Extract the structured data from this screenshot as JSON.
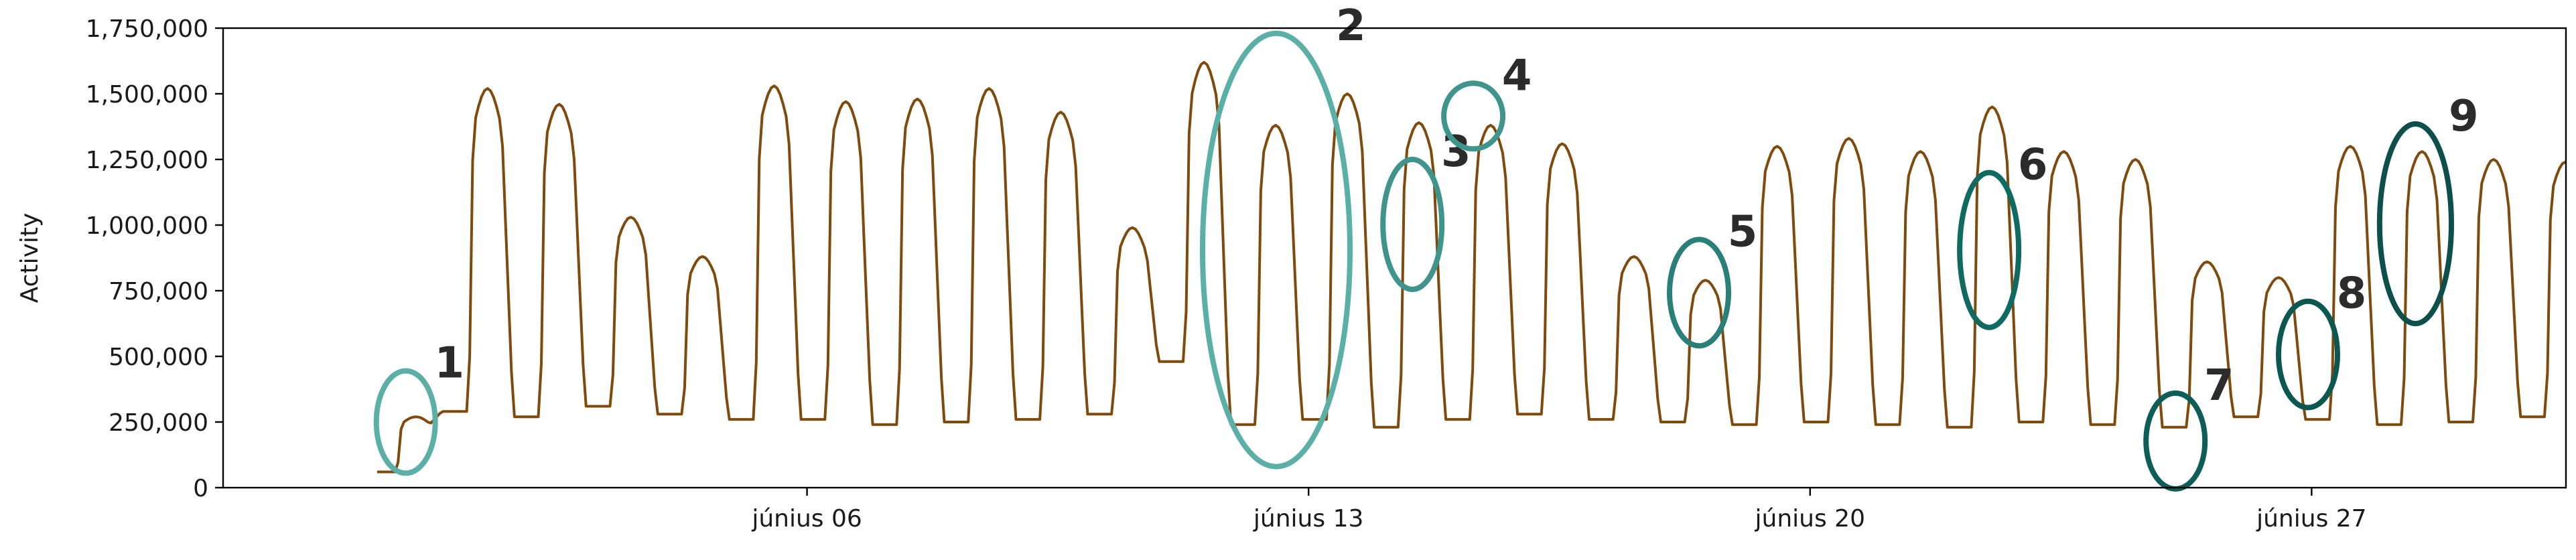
{
  "chart_data": {
    "type": "line",
    "title": "",
    "xlabel": "",
    "ylabel": "Activity",
    "ylim": [
      0,
      1750000
    ],
    "y_ticks": [
      0,
      250000,
      500000,
      750000,
      1000000,
      1250000,
      1500000,
      1750000
    ],
    "y_tick_labels": [
      "0",
      "250,000",
      "500,000",
      "750,000",
      "1,000,000",
      "1,250,000",
      "1,500,000",
      "1,750,000"
    ],
    "xlim_days": [
      -2.15,
      30.55
    ],
    "x_ticks": [
      {
        "day": 6,
        "label": "június 06"
      },
      {
        "day": 13,
        "label": "június 13"
      },
      {
        "day": 20,
        "label": "június 20"
      },
      {
        "day": 27,
        "label": "június 27"
      }
    ],
    "grid": false,
    "series": [
      {
        "color": "#7f4a0c",
        "daily": [
          {
            "low": 60000,
            "peak": 270000
          },
          {
            "low": 290000,
            "peak": 1520000
          },
          {
            "low": 270000,
            "peak": 1460000
          },
          {
            "low": 310000,
            "peak": 1030000
          },
          {
            "low": 280000,
            "peak": 880000
          },
          {
            "low": 260000,
            "peak": 1530000
          },
          {
            "low": 260000,
            "peak": 1470000
          },
          {
            "low": 240000,
            "peak": 1480000
          },
          {
            "low": 250000,
            "peak": 1520000
          },
          {
            "low": 260000,
            "peak": 1430000
          },
          {
            "low": 280000,
            "peak": 990000
          },
          {
            "low": 480000,
            "peak": 1620000
          },
          {
            "low": 240000,
            "peak": 1380000
          },
          {
            "low": 260000,
            "peak": 1500000
          },
          {
            "low": 230000,
            "peak": 1390000
          },
          {
            "low": 260000,
            "peak": 1380000
          },
          {
            "low": 280000,
            "peak": 1310000
          },
          {
            "low": 260000,
            "peak": 880000
          },
          {
            "low": 250000,
            "peak": 790000
          },
          {
            "low": 240000,
            "peak": 1300000
          },
          {
            "low": 250000,
            "peak": 1330000
          },
          {
            "low": 240000,
            "peak": 1280000
          },
          {
            "low": 230000,
            "peak": 1450000
          },
          {
            "low": 250000,
            "peak": 1280000
          },
          {
            "low": 240000,
            "peak": 1250000
          },
          {
            "low": 230000,
            "peak": 860000
          },
          {
            "low": 270000,
            "peak": 800000
          },
          {
            "low": 260000,
            "peak": 1300000
          },
          {
            "low": 240000,
            "peak": 1280000
          },
          {
            "low": 250000,
            "peak": 1250000
          },
          {
            "low": 270000,
            "peak": 1240000
          }
        ]
      }
    ],
    "annotations": [
      {
        "label": "1",
        "day": 0.4,
        "y_low": 55000,
        "y_high": 445000,
        "color": "#5ab0a6"
      },
      {
        "label": "2",
        "day": 12.55,
        "y_low": 80000,
        "y_high": 1730000,
        "color": "#5ab0a6"
      },
      {
        "label": "3",
        "day": 14.45,
        "y_low": 755000,
        "y_high": 1250000,
        "color": "#3f948c"
      },
      {
        "label": "4",
        "day": 15.3,
        "y_low": 1290000,
        "y_high": 1540000,
        "color": "#3f948c"
      },
      {
        "label": "5",
        "day": 18.45,
        "y_low": 540000,
        "y_high": 945000,
        "color": "#2a7f78"
      },
      {
        "label": "6",
        "day": 22.5,
        "y_low": 610000,
        "y_high": 1200000,
        "color": "#0f6a62"
      },
      {
        "label": "7",
        "day": 25.1,
        "y_low": -5000,
        "y_high": 360000,
        "color": "#0d5d58"
      },
      {
        "label": "8",
        "day": 26.95,
        "y_low": 305000,
        "y_high": 710000,
        "color": "#0d5752"
      },
      {
        "label": "9",
        "day": 28.45,
        "y_low": 625000,
        "y_high": 1385000,
        "color": "#0d4f4b"
      }
    ]
  }
}
